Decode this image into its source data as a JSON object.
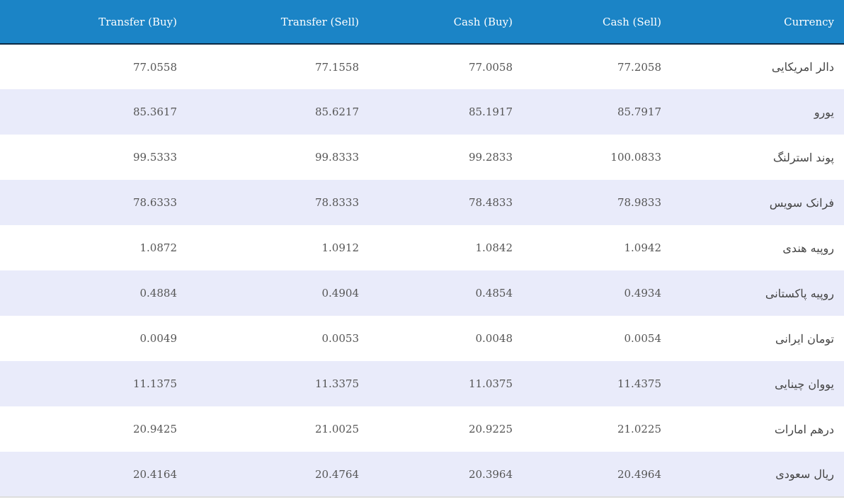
{
  "table": {
    "headers": {
      "transfer_buy": "Transfer (Buy)",
      "transfer_sell": "Transfer (Sell)",
      "cash_buy": "Cash (Buy)",
      "cash_sell": "Cash (Sell)",
      "currency": "Currency"
    },
    "rows": [
      {
        "transfer_buy": "77.0558",
        "transfer_sell": "77.1558",
        "cash_buy": "77.0058",
        "cash_sell": "77.2058",
        "currency": "دالر امریکایی"
      },
      {
        "transfer_buy": "85.3617",
        "transfer_sell": "85.6217",
        "cash_buy": "85.1917",
        "cash_sell": "85.7917",
        "currency": "یورو"
      },
      {
        "transfer_buy": "99.5333",
        "transfer_sell": "99.8333",
        "cash_buy": "99.2833",
        "cash_sell": "100.0833",
        "currency": "پوند استرلنگ"
      },
      {
        "transfer_buy": "78.6333",
        "transfer_sell": "78.8333",
        "cash_buy": "78.4833",
        "cash_sell": "78.9833",
        "currency": "فرانک سویس"
      },
      {
        "transfer_buy": "1.0872",
        "transfer_sell": "1.0912",
        "cash_buy": "1.0842",
        "cash_sell": "1.0942",
        "currency": "روپیه هندی"
      },
      {
        "transfer_buy": "0.4884",
        "transfer_sell": "0.4904",
        "cash_buy": "0.4854",
        "cash_sell": "0.4934",
        "currency": "روپیه پاکستانی"
      },
      {
        "transfer_buy": "0.0049",
        "transfer_sell": "0.0053",
        "cash_buy": "0.0048",
        "cash_sell": "0.0054",
        "currency": "تومان ایرانی"
      },
      {
        "transfer_buy": "11.1375",
        "transfer_sell": "11.3375",
        "cash_buy": "11.0375",
        "cash_sell": "11.4375",
        "currency": "یووان چینایی"
      },
      {
        "transfer_buy": "20.9425",
        "transfer_sell": "21.0025",
        "cash_buy": "20.9225",
        "cash_sell": "21.0225",
        "currency": "درهم امارات"
      },
      {
        "transfer_buy": "20.4164",
        "transfer_sell": "20.4764",
        "cash_buy": "20.3964",
        "cash_sell": "20.4964",
        "currency": "ریال سعودی"
      }
    ]
  },
  "colors": {
    "header_bg": "#1b84c6",
    "header_text": "#ffffff",
    "row_alt_bg": "#e9ebfa",
    "row_bg": "#ffffff"
  }
}
